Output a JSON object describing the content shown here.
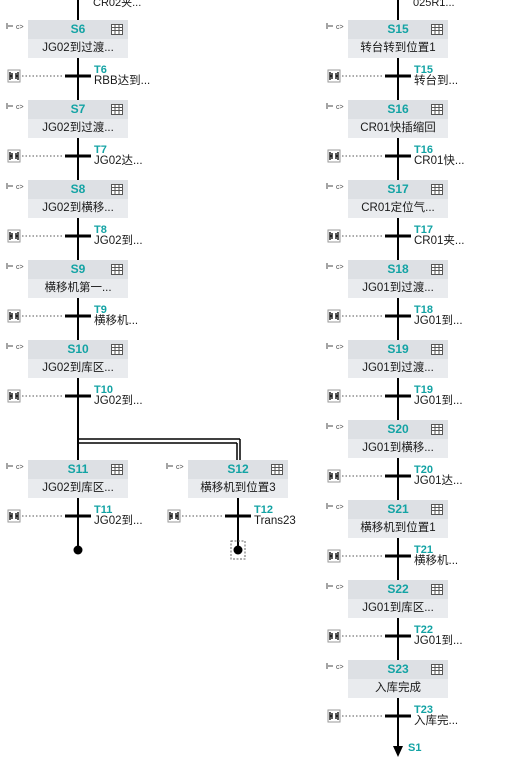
{
  "cut_top": {
    "left": "CR02夹...",
    "right": "025R1..."
  },
  "col1": [
    {
      "step": "S6",
      "desc": "JG02到过渡...",
      "trans": "T6",
      "tdesc": "RBB达到..."
    },
    {
      "step": "S7",
      "desc": "JG02到过渡...",
      "trans": "T7",
      "tdesc": "JG02达..."
    },
    {
      "step": "S8",
      "desc": "JG02到横移...",
      "trans": "T8",
      "tdesc": "JG02到..."
    },
    {
      "step": "S9",
      "desc": "横移机第一...",
      "trans": "T9",
      "tdesc": "横移机..."
    },
    {
      "step": "S10",
      "desc": "JG02到库区...",
      "trans": "T10",
      "tdesc": "JG02到..."
    }
  ],
  "branches": [
    {
      "step": "S11",
      "desc": "JG02到库区...",
      "trans": "T11",
      "tdesc": "JG02到..."
    },
    {
      "step": "S12",
      "desc": "横移机到位置3",
      "trans": "T12",
      "tdesc": "Trans23"
    }
  ],
  "col2": [
    {
      "step": "S15",
      "desc": "转台转到位置1",
      "trans": "T15",
      "tdesc": "转台到..."
    },
    {
      "step": "S16",
      "desc": "CR01快插缩回",
      "trans": "T16",
      "tdesc": "CR01快..."
    },
    {
      "step": "S17",
      "desc": "CR01定位气...",
      "trans": "T17",
      "tdesc": "CR01夹..."
    },
    {
      "step": "S18",
      "desc": "JG01到过渡...",
      "trans": "T18",
      "tdesc": "JG01到..."
    },
    {
      "step": "S19",
      "desc": "JG01到过渡...",
      "trans": "T19",
      "tdesc": "JG01到..."
    },
    {
      "step": "S20",
      "desc": "JG01到横移...",
      "trans": "T20",
      "tdesc": "JG01达..."
    },
    {
      "step": "S21",
      "desc": "横移机到位置1",
      "trans": "T21",
      "tdesc": "横移机..."
    },
    {
      "step": "S22",
      "desc": "JG01到库区...",
      "trans": "T22",
      "tdesc": "JG01到..."
    },
    {
      "step": "S23",
      "desc": "入库完成",
      "trans": "T23",
      "tdesc": "入库完..."
    }
  ],
  "jump_target": "S1",
  "colors": {
    "accent": "#13a3a4",
    "step_bg": "#dde0e4",
    "line": "#000000"
  }
}
